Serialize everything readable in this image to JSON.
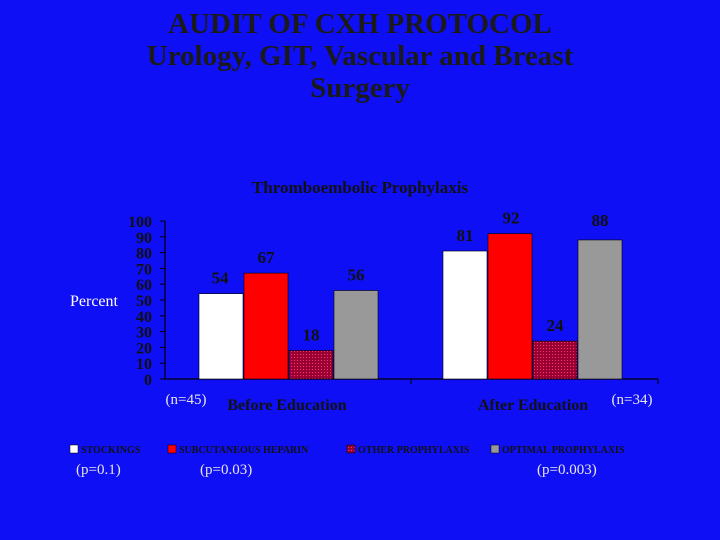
{
  "slide": {
    "title_lines": [
      "AUDIT OF CXH PROTOCOL",
      "Urology, GIT, Vascular and Breast",
      "Surgery"
    ]
  },
  "colors": {
    "background": "#0f0ff6",
    "title_text": "#1a1a1a",
    "annotation_text": "#e6e6e6"
  },
  "chart_data": {
    "type": "bar",
    "title": "Thromboembolic Prophylaxis",
    "ylabel": "Percent",
    "xlabel": "",
    "ylim": [
      0,
      100
    ],
    "yticks": [
      0,
      10,
      20,
      30,
      40,
      50,
      60,
      70,
      80,
      90,
      100
    ],
    "grid": false,
    "legend_position": "bottom",
    "categories": [
      "Before Education",
      "After Education"
    ],
    "category_sample_sizes": [
      "(n=45)",
      "(n=34)"
    ],
    "series": [
      {
        "name": "STOCKINGS",
        "values": [
          54,
          81
        ],
        "color": "#ffffff"
      },
      {
        "name": "SUBCUTANEOUS HEPARIN",
        "values": [
          67,
          92
        ],
        "color": "#ff0000"
      },
      {
        "name": "OTHER PROPHYLAXIS",
        "values": [
          18,
          24
        ],
        "color": "#990033"
      },
      {
        "name": "OPTIMAL PROPHYLAXIS",
        "values": [
          56,
          88
        ],
        "color": "#999999"
      }
    ],
    "p_values": [
      "(p=0.1)",
      "(p=0.03)",
      "(p=0.003)"
    ]
  }
}
